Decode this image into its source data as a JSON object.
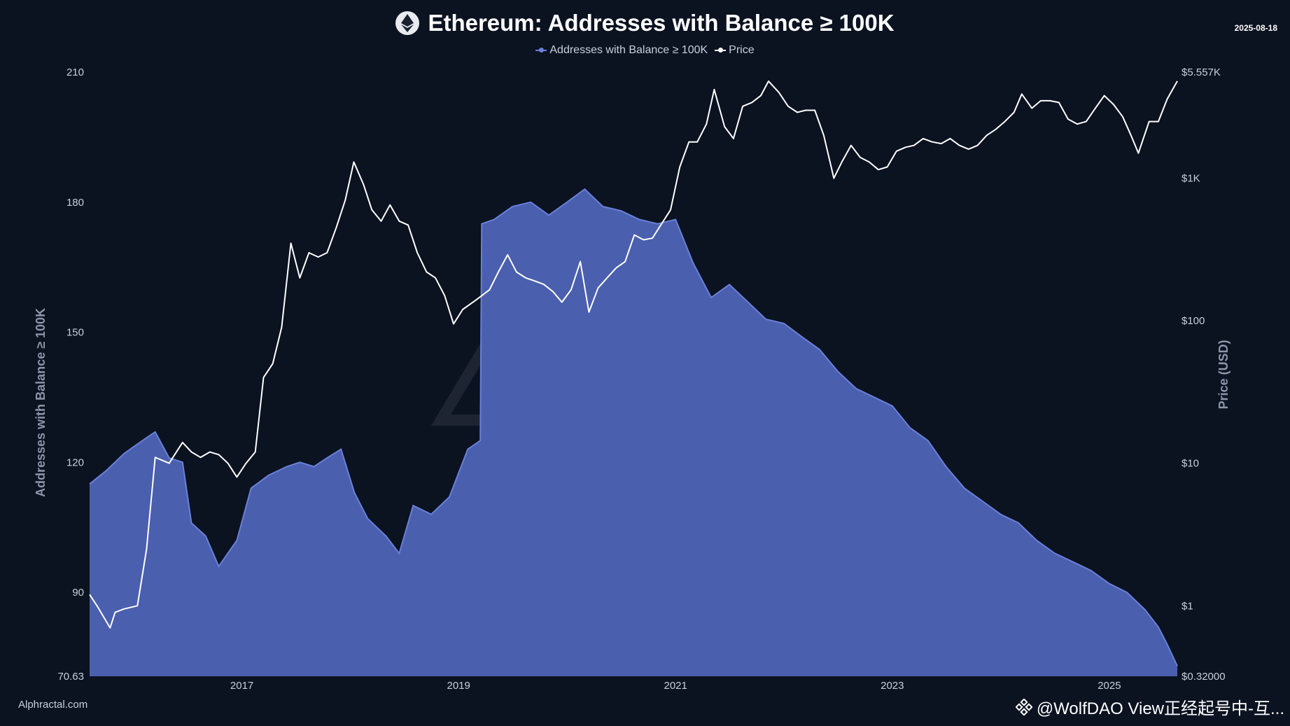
{
  "header": {
    "title": "Ethereum: Addresses with Balance ≥ 100K",
    "date": "2025-08-18",
    "logo_icon": "ethereum-icon"
  },
  "legend": {
    "series1": "Addresses with Balance ≥ 100K",
    "series2": "Price"
  },
  "footer": {
    "source": "Alphractal.com",
    "watermark_text": "@WolfDAO View正经起号中-互...",
    "watermark_icon": "binance-icon"
  },
  "background_watermark": "Alphractal",
  "colors": {
    "background": "#0b1220",
    "area_fill": "#4a5fae",
    "area_stroke": "#6a80d8",
    "price_line": "#ffffff",
    "axis_text": "#c8cfdc"
  },
  "chart_data": {
    "type": "area",
    "title": "Ethereum: Addresses with Balance ≥ 100K",
    "ylabel": "Addresses with Balance ≥ 100K",
    "y2label": "Price (USD)",
    "ylim": [
      70.63,
      210
    ],
    "y2lim": [
      0.32,
      5557
    ],
    "y2scale": "log",
    "yticks": [
      "210",
      "180",
      "150",
      "120",
      "90",
      "70.63"
    ],
    "y2ticks": [
      "$5.557K",
      "$1K",
      "$100",
      "$10",
      "$1",
      "$0.32000"
    ],
    "xticks": [
      "2017",
      "2019",
      "2021",
      "2023",
      "2025"
    ],
    "xlim": [
      "2015-08-07",
      "2025-08-18"
    ],
    "grid": false,
    "legend_position": "top-center",
    "series": [
      {
        "name": "Addresses with Balance ≥ 100K",
        "type": "area",
        "points": [
          [
            "2015-08-07",
            115
          ],
          [
            "2015-10-01",
            118
          ],
          [
            "2015-12-01",
            122
          ],
          [
            "2016-02-01",
            125
          ],
          [
            "2016-03-15",
            127
          ],
          [
            "2016-05-01",
            121
          ],
          [
            "2016-06-15",
            120
          ],
          [
            "2016-07-15",
            106
          ],
          [
            "2016-09-01",
            103
          ],
          [
            "2016-10-15",
            96
          ],
          [
            "2016-12-15",
            102
          ],
          [
            "2017-02-01",
            114
          ],
          [
            "2017-04-01",
            117
          ],
          [
            "2017-06-01",
            119
          ],
          [
            "2017-07-15",
            120
          ],
          [
            "2017-09-01",
            119
          ],
          [
            "2017-10-15",
            121
          ],
          [
            "2017-12-01",
            123
          ],
          [
            "2018-01-15",
            113
          ],
          [
            "2018-03-01",
            107
          ],
          [
            "2018-05-01",
            103
          ],
          [
            "2018-06-15",
            99
          ],
          [
            "2018-08-01",
            110
          ],
          [
            "2018-10-01",
            108
          ],
          [
            "2018-12-01",
            112
          ],
          [
            "2019-02-01",
            123
          ],
          [
            "2019-03-15",
            125
          ],
          [
            "2019-03-20",
            175
          ],
          [
            "2019-05-01",
            176
          ],
          [
            "2019-07-01",
            179
          ],
          [
            "2019-09-01",
            180
          ],
          [
            "2019-11-01",
            177
          ],
          [
            "2020-01-01",
            180
          ],
          [
            "2020-03-01",
            183
          ],
          [
            "2020-05-01",
            179
          ],
          [
            "2020-07-01",
            178
          ],
          [
            "2020-09-01",
            176
          ],
          [
            "2020-11-01",
            175
          ],
          [
            "2021-01-01",
            176
          ],
          [
            "2021-03-01",
            166
          ],
          [
            "2021-05-01",
            158
          ],
          [
            "2021-07-01",
            161
          ],
          [
            "2021-09-01",
            157
          ],
          [
            "2021-11-01",
            153
          ],
          [
            "2022-01-01",
            152
          ],
          [
            "2022-03-01",
            149
          ],
          [
            "2022-05-01",
            146
          ],
          [
            "2022-07-01",
            141
          ],
          [
            "2022-09-01",
            137
          ],
          [
            "2022-11-01",
            135
          ],
          [
            "2023-01-01",
            133
          ],
          [
            "2023-03-01",
            128
          ],
          [
            "2023-05-01",
            125
          ],
          [
            "2023-07-01",
            119
          ],
          [
            "2023-09-01",
            114
          ],
          [
            "2023-11-01",
            111
          ],
          [
            "2024-01-01",
            108
          ],
          [
            "2024-03-01",
            106
          ],
          [
            "2024-05-01",
            102
          ],
          [
            "2024-07-01",
            99
          ],
          [
            "2024-09-01",
            97
          ],
          [
            "2024-11-01",
            95
          ],
          [
            "2025-01-01",
            92
          ],
          [
            "2025-03-01",
            90
          ],
          [
            "2025-05-01",
            86
          ],
          [
            "2025-06-15",
            82
          ],
          [
            "2025-07-15",
            78
          ],
          [
            "2025-08-18",
            73
          ]
        ]
      },
      {
        "name": "Price",
        "type": "line",
        "points": [
          [
            "2015-08-07",
            1.2
          ],
          [
            "2015-09-01",
            1.0
          ],
          [
            "2015-10-15",
            0.7
          ],
          [
            "2015-11-01",
            0.9
          ],
          [
            "2015-12-01",
            0.95
          ],
          [
            "2016-01-15",
            1.0
          ],
          [
            "2016-02-15",
            2.5
          ],
          [
            "2016-03-15",
            11
          ],
          [
            "2016-05-01",
            10
          ],
          [
            "2016-06-15",
            14
          ],
          [
            "2016-07-15",
            12
          ],
          [
            "2016-08-15",
            11
          ],
          [
            "2016-09-15",
            12
          ],
          [
            "2016-10-15",
            11.5
          ],
          [
            "2016-11-15",
            10
          ],
          [
            "2016-12-15",
            8
          ],
          [
            "2017-01-15",
            10
          ],
          [
            "2017-02-15",
            12
          ],
          [
            "2017-03-15",
            40
          ],
          [
            "2017-04-15",
            50
          ],
          [
            "2017-05-15",
            90
          ],
          [
            "2017-06-15",
            350
          ],
          [
            "2017-07-15",
            200
          ],
          [
            "2017-08-15",
            300
          ],
          [
            "2017-09-15",
            280
          ],
          [
            "2017-10-15",
            300
          ],
          [
            "2017-11-15",
            450
          ],
          [
            "2017-12-15",
            700
          ],
          [
            "2018-01-13",
            1300
          ],
          [
            "2018-02-15",
            900
          ],
          [
            "2018-03-15",
            600
          ],
          [
            "2018-04-15",
            500
          ],
          [
            "2018-05-15",
            650
          ],
          [
            "2018-06-15",
            500
          ],
          [
            "2018-07-15",
            470
          ],
          [
            "2018-08-15",
            300
          ],
          [
            "2018-09-15",
            220
          ],
          [
            "2018-10-15",
            200
          ],
          [
            "2018-11-15",
            150
          ],
          [
            "2018-12-15",
            95
          ],
          [
            "2019-01-15",
            120
          ],
          [
            "2019-03-01",
            140
          ],
          [
            "2019-04-15",
            165
          ],
          [
            "2019-05-15",
            220
          ],
          [
            "2019-06-15",
            290
          ],
          [
            "2019-07-15",
            220
          ],
          [
            "2019-08-15",
            200
          ],
          [
            "2019-09-15",
            190
          ],
          [
            "2019-10-15",
            180
          ],
          [
            "2019-11-15",
            160
          ],
          [
            "2019-12-15",
            135
          ],
          [
            "2020-01-15",
            165
          ],
          [
            "2020-02-15",
            260
          ],
          [
            "2020-03-15",
            115
          ],
          [
            "2020-04-15",
            170
          ],
          [
            "2020-05-15",
            200
          ],
          [
            "2020-06-15",
            235
          ],
          [
            "2020-07-15",
            260
          ],
          [
            "2020-08-15",
            400
          ],
          [
            "2020-09-15",
            370
          ],
          [
            "2020-10-15",
            380
          ],
          [
            "2020-11-15",
            480
          ],
          [
            "2020-12-15",
            600
          ],
          [
            "2021-01-15",
            1200
          ],
          [
            "2021-02-15",
            1800
          ],
          [
            "2021-03-15",
            1800
          ],
          [
            "2021-04-15",
            2400
          ],
          [
            "2021-05-11",
            4200
          ],
          [
            "2021-06-15",
            2300
          ],
          [
            "2021-07-15",
            1900
          ],
          [
            "2021-08-15",
            3200
          ],
          [
            "2021-09-15",
            3400
          ],
          [
            "2021-10-15",
            3800
          ],
          [
            "2021-11-10",
            4800
          ],
          [
            "2021-12-15",
            4000
          ],
          [
            "2022-01-15",
            3200
          ],
          [
            "2022-02-15",
            2900
          ],
          [
            "2022-03-15",
            3000
          ],
          [
            "2022-04-15",
            3000
          ],
          [
            "2022-05-15",
            2000
          ],
          [
            "2022-06-18",
            1000
          ],
          [
            "2022-07-15",
            1300
          ],
          [
            "2022-08-15",
            1700
          ],
          [
            "2022-09-15",
            1400
          ],
          [
            "2022-10-15",
            1300
          ],
          [
            "2022-11-15",
            1150
          ],
          [
            "2022-12-15",
            1200
          ],
          [
            "2023-01-15",
            1550
          ],
          [
            "2023-02-15",
            1650
          ],
          [
            "2023-03-15",
            1700
          ],
          [
            "2023-04-15",
            1900
          ],
          [
            "2023-05-15",
            1800
          ],
          [
            "2023-06-15",
            1750
          ],
          [
            "2023-07-15",
            1900
          ],
          [
            "2023-08-15",
            1700
          ],
          [
            "2023-09-15",
            1600
          ],
          [
            "2023-10-15",
            1700
          ],
          [
            "2023-11-15",
            2000
          ],
          [
            "2023-12-15",
            2200
          ],
          [
            "2024-01-15",
            2500
          ],
          [
            "2024-02-15",
            2900
          ],
          [
            "2024-03-12",
            3900
          ],
          [
            "2024-04-15",
            3100
          ],
          [
            "2024-05-15",
            3500
          ],
          [
            "2024-06-15",
            3500
          ],
          [
            "2024-07-15",
            3400
          ],
          [
            "2024-08-15",
            2600
          ],
          [
            "2024-09-15",
            2400
          ],
          [
            "2024-10-15",
            2500
          ],
          [
            "2024-11-15",
            3100
          ],
          [
            "2024-12-15",
            3800
          ],
          [
            "2025-01-15",
            3300
          ],
          [
            "2025-02-15",
            2700
          ],
          [
            "2025-03-15",
            2000
          ],
          [
            "2025-04-09",
            1500
          ],
          [
            "2025-05-15",
            2500
          ],
          [
            "2025-06-15",
            2500
          ],
          [
            "2025-07-15",
            3600
          ],
          [
            "2025-08-18",
            4800
          ]
        ]
      }
    ]
  }
}
